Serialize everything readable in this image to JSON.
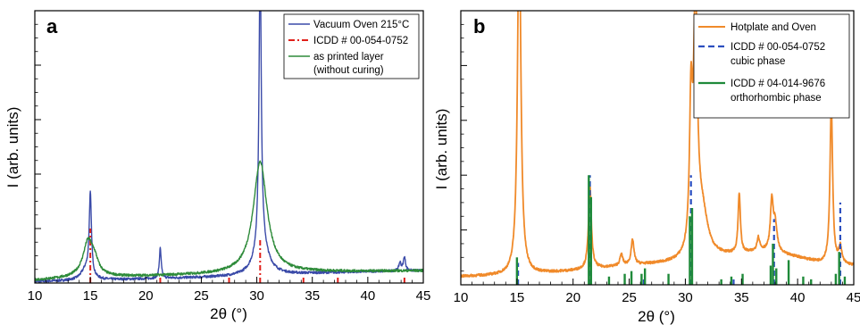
{
  "chart_data": [
    {
      "panel": "a",
      "type": "line",
      "xlabel": "2θ (°)",
      "ylabel": "I (arb. units)",
      "xlim": [
        10,
        45
      ],
      "ylim": [
        0,
        100
      ],
      "xticks": [
        10,
        15,
        20,
        25,
        30,
        35,
        40,
        45
      ],
      "y_tick_labels": "none",
      "grid": false,
      "legend_position": "top-right",
      "series": [
        {
          "name": "Vacuum Oven 215°C",
          "color": "#3a4aa8",
          "style": "solid",
          "baseline": [
            [
              10,
              0.5
            ],
            [
              20,
              1.5
            ],
            [
              30,
              2.5
            ],
            [
              35,
              3.5
            ],
            [
              40,
              4.2
            ],
            [
              45,
              4.5
            ]
          ],
          "peaks": [
            {
              "x": 14.6,
              "h": 4,
              "w": 0.5
            },
            {
              "x": 15.0,
              "h": 30,
              "w": 0.12
            },
            {
              "x": 21.3,
              "h": 11,
              "w": 0.1
            },
            {
              "x": 30.3,
              "h": 105,
              "w": 0.12
            },
            {
              "x": 30.4,
              "h": 12,
              "w": 0.7
            },
            {
              "x": 42.9,
              "h": 3,
              "w": 0.12
            },
            {
              "x": 43.3,
              "h": 5,
              "w": 0.12
            }
          ]
        },
        {
          "name": "ICDD # 00-054-0752",
          "color": "#e0201a",
          "style": "dash-dot sticks",
          "sticks": [
            [
              15.0,
              20
            ],
            [
              21.3,
              2
            ],
            [
              27.5,
              2
            ],
            [
              30.3,
              16
            ],
            [
              34.2,
              2
            ],
            [
              37.3,
              2
            ],
            [
              43.3,
              2
            ]
          ]
        },
        {
          "name": "as printed layer (without curing)",
          "color": "#2e8b3a",
          "style": "solid",
          "baseline": [
            [
              10,
              1
            ],
            [
              14,
              2
            ],
            [
              20,
              2.5
            ],
            [
              25,
              3
            ],
            [
              35,
              4
            ],
            [
              45,
              4.5
            ]
          ],
          "peaks": [
            {
              "x": 14.8,
              "h": 13,
              "w": 0.55
            },
            {
              "x": 15.4,
              "h": 4,
              "w": 0.4
            },
            {
              "x": 30.3,
              "h": 41,
              "w": 0.75
            }
          ]
        }
      ],
      "legend": [
        "Vacuum Oven 215°C",
        "ICDD # 00-054-0752",
        "as printed layer",
        "(without curing)"
      ]
    },
    {
      "panel": "b",
      "type": "line",
      "xlabel": "2θ (°)",
      "ylabel": "I (arb. units)",
      "xlim": [
        10,
        45
      ],
      "ylim": [
        0,
        100
      ],
      "xticks": [
        10,
        15,
        20,
        25,
        30,
        35,
        40,
        45
      ],
      "y_tick_labels": "none",
      "grid": false,
      "legend_position": "top-right",
      "series": [
        {
          "name": "Hotplate and Oven",
          "color": "#f08a2a",
          "style": "solid",
          "baseline": [
            [
              10,
              3
            ],
            [
              15,
              3.5
            ],
            [
              20,
              5
            ],
            [
              25,
              7
            ],
            [
              30,
              8
            ],
            [
              33,
              10
            ],
            [
              37,
              12
            ],
            [
              40,
              10
            ],
            [
              42,
              8
            ],
            [
              45,
              7
            ]
          ],
          "peaks": [
            {
              "x": 15.2,
              "h": 130,
              "w": 0.18
            },
            {
              "x": 21.5,
              "h": 30,
              "w": 0.15
            },
            {
              "x": 24.3,
              "h": 4,
              "w": 0.15
            },
            {
              "x": 25.3,
              "h": 9,
              "w": 0.15
            },
            {
              "x": 30.5,
              "h": 50,
              "w": 0.15
            },
            {
              "x": 30.9,
              "h": 90,
              "w": 0.2
            },
            {
              "x": 31.5,
              "h": 16,
              "w": 0.6
            },
            {
              "x": 34.8,
              "h": 22,
              "w": 0.12
            },
            {
              "x": 36.5,
              "h": 5,
              "w": 0.15
            },
            {
              "x": 37.7,
              "h": 18,
              "w": 0.15
            },
            {
              "x": 38.0,
              "h": 10,
              "w": 0.2
            },
            {
              "x": 43.0,
              "h": 58,
              "w": 0.14
            },
            {
              "x": 43.8,
              "h": 6,
              "w": 0.15
            }
          ]
        },
        {
          "name": "ICDD # 00-054-0752 cubic phase",
          "color": "#2c4fbf",
          "style": "dashed sticks",
          "sticks": [
            [
              15.1,
              8
            ],
            [
              21.5,
              40
            ],
            [
              26.3,
              3
            ],
            [
              30.5,
              40
            ],
            [
              34.3,
              3
            ],
            [
              37.9,
              24
            ],
            [
              43.8,
              30
            ]
          ]
        },
        {
          "name": "ICDD # 04-014-9676 orthorhombic phase",
          "color": "#1f8a3a",
          "style": "solid sticks",
          "sticks": [
            [
              15.0,
              10
            ],
            [
              21.4,
              40
            ],
            [
              21.6,
              32
            ],
            [
              23.2,
              3
            ],
            [
              24.6,
              4
            ],
            [
              25.2,
              5
            ],
            [
              26.1,
              4
            ],
            [
              26.4,
              6
            ],
            [
              28.5,
              4
            ],
            [
              30.4,
              25
            ],
            [
              30.6,
              28
            ],
            [
              33.2,
              2
            ],
            [
              34.1,
              3
            ],
            [
              35.1,
              4
            ],
            [
              37.6,
              7
            ],
            [
              37.8,
              15
            ],
            [
              38.1,
              6
            ],
            [
              39.2,
              9
            ],
            [
              40.5,
              3
            ],
            [
              41.2,
              2
            ],
            [
              43.4,
              4
            ],
            [
              43.7,
              12
            ],
            [
              44.2,
              3
            ]
          ]
        }
      ],
      "legend": [
        "Hotplate and Oven",
        "ICDD # 00-054-0752",
        "cubic phase",
        "ICDD # 04-014-9676",
        "orthorhombic phase"
      ]
    }
  ]
}
